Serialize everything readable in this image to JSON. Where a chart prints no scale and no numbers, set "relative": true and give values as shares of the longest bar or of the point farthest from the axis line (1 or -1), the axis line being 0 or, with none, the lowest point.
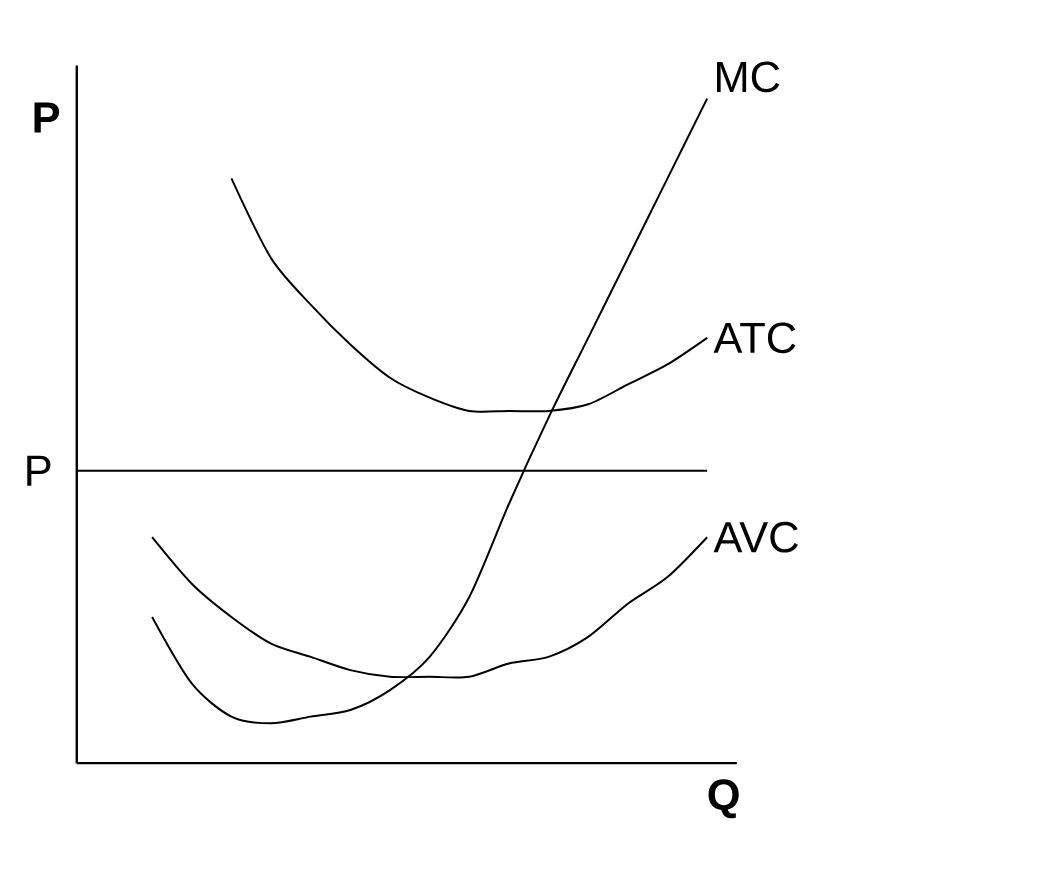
{
  "chart_data": {
    "type": "line",
    "xlabel": "Q",
    "ylabel": "P",
    "relative": true,
    "categories": [
      null,
      null,
      null,
      null,
      null,
      null,
      null,
      null,
      null,
      null,
      null,
      null,
      null,
      null,
      null
    ],
    "series": [
      {
        "name": "MC",
        "color": "#000000",
        "values": [
          0.22,
          0.12,
          0.07,
          0.06,
          0.07,
          0.08,
          0.11,
          0.16,
          0.25,
          0.39,
          0.52,
          0.64,
          0.76,
          0.88,
          1
        ]
      },
      {
        "name": "ATC",
        "color": "#000000",
        "values": [
          null,
          null,
          0.88,
          0.76,
          0.69,
          0.63,
          0.58,
          0.55,
          0.53,
          0.53,
          0.53,
          0.54,
          0.57,
          0.6,
          0.64
        ]
      },
      {
        "name": "AVC",
        "color": "#000000",
        "values": [
          0.34,
          0.27,
          0.22,
          0.18,
          0.16,
          0.14,
          0.13,
          0.13,
          0.13,
          0.15,
          0.16,
          0.19,
          0.24,
          0.28,
          0.34
        ]
      }
    ],
    "ref_lines": [
      {
        "axis": "y",
        "value": 0.44,
        "label": "P",
        "color": "#000000"
      }
    ]
  }
}
